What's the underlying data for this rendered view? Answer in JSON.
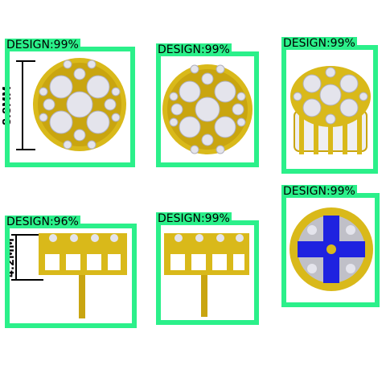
{
  "detections": [
    {
      "label": "DESIGN:99%"
    },
    {
      "label": "DESIGN:99%"
    },
    {
      "label": "DESIGN:99%"
    },
    {
      "label": "DESIGN:96%"
    },
    {
      "label": "DESIGN:99%"
    },
    {
      "label": "DESIGN:99%"
    }
  ],
  "dimensions": {
    "diameter": "8.8MM",
    "height": "4.2MM"
  },
  "colors": {
    "box": "#2BF08A",
    "gold": "#D9B91A",
    "gold_dark": "#A98A05",
    "diamond": "#E4E4EC",
    "highlight": "#1E22E0"
  }
}
